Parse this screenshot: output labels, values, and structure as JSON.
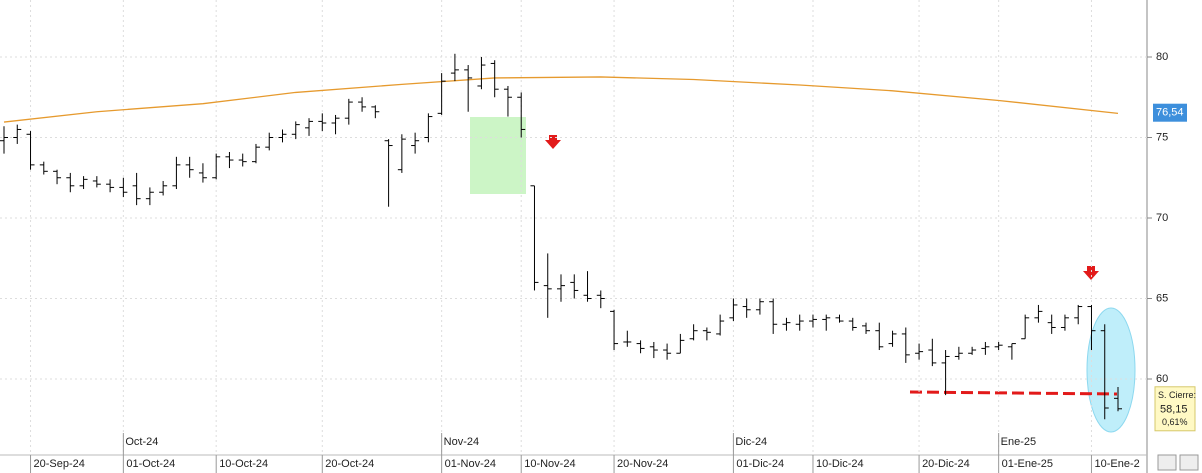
{
  "chart_data": {
    "type": "ohlc",
    "categories": [
      null,
      null,
      "20-Sep-24",
      null,
      null,
      null,
      null,
      null,
      null,
      "01-Oct-24",
      null,
      null,
      null,
      null,
      null,
      null,
      "10-Oct-24",
      null,
      null,
      null,
      null,
      null,
      null,
      null,
      "20-Oct-24",
      null,
      null,
      null,
      null,
      null,
      null,
      null,
      null,
      "01-Nov-24",
      null,
      null,
      null,
      null,
      null,
      "10-Nov-24",
      null,
      null,
      null,
      null,
      null,
      null,
      "20-Nov-24",
      null,
      null,
      null,
      null,
      null,
      null,
      null,
      null,
      "01-Dic-24",
      null,
      null,
      null,
      null,
      null,
      "10-Dic-24",
      null,
      null,
      null,
      null,
      null,
      null,
      null,
      "20-Dic-24",
      null,
      null,
      null,
      null,
      null,
      "01-Ene-25",
      null,
      null,
      null,
      null,
      null,
      null,
      "10-Ene-2",
      null,
      null
    ],
    "month_labels": [
      {
        "index": 9,
        "label": "Oct-24"
      },
      {
        "index": 33,
        "label": "Nov-24"
      },
      {
        "index": 55,
        "label": "Dic-24"
      },
      {
        "index": 75,
        "label": "Ene-25"
      }
    ],
    "open": [
      74.8,
      75.0,
      75.2,
      73.3,
      72.9,
      72.5,
      72.0,
      72.3,
      72.1,
      71.9,
      72.0,
      71.2,
      71.6,
      72.0,
      73.3,
      72.8,
      72.5,
      73.8,
      73.6,
      73.5,
      74.4,
      75.0,
      75.2,
      75.6,
      76.0,
      75.9,
      76.2,
      77.2,
      76.9,
      74.8,
      73.0,
      74.5,
      75.0,
      76.5,
      79.0,
      79.2,
      78.2,
      79.6,
      78.0,
      77.5,
      72.0,
      65.8,
      65.6,
      66.0,
      65.2,
      65.2,
      64.2,
      62.3,
      62.2,
      62.0,
      61.8,
      61.6,
      62.5,
      63.0,
      62.8,
      63.8,
      64.5,
      64.3,
      64.8,
      63.4,
      63.4,
      63.6,
      63.7,
      63.8,
      63.6,
      63.3,
      63.0,
      62.2,
      62.8,
      61.6,
      61.8,
      61.0,
      61.4,
      61.6,
      61.9,
      62.0,
      62.0,
      62.5,
      63.8,
      63.5,
      63.2,
      63.8,
      64.5,
      63.0,
      58.8
    ],
    "high": [
      75.7,
      75.8,
      75.4,
      73.5,
      73.0,
      72.8,
      72.6,
      72.6,
      72.4,
      72.5,
      72.8,
      71.9,
      72.3,
      73.8,
      73.8,
      73.4,
      74.0,
      74.1,
      74.0,
      74.6,
      75.3,
      75.5,
      76.0,
      76.2,
      76.5,
      76.4,
      77.4,
      77.5,
      77.0,
      74.9,
      75.2,
      75.3,
      76.5,
      79.0,
      80.2,
      79.5,
      80.0,
      79.8,
      78.2,
      77.8,
      72.0,
      67.8,
      66.5,
      66.5,
      66.7,
      65.5,
      64.3,
      63.0,
      62.4,
      62.3,
      62.2,
      62.8,
      63.4,
      63.2,
      64.0,
      65.0,
      65.0,
      65.0,
      65.0,
      63.8,
      64.0,
      64.0,
      64.0,
      64.0,
      63.8,
      63.5,
      63.5,
      63.0,
      63.2,
      62.2,
      62.5,
      61.8,
      62.0,
      62.0,
      62.3,
      62.3,
      62.2,
      64.0,
      64.6,
      64.0,
      64.0,
      64.6,
      64.6,
      63.4,
      59.5
    ],
    "low": [
      74.0,
      74.6,
      73.0,
      72.7,
      72.1,
      71.6,
      71.8,
      71.9,
      71.6,
      71.3,
      70.8,
      70.8,
      71.4,
      71.8,
      72.5,
      72.2,
      72.4,
      73.1,
      73.2,
      73.4,
      74.2,
      74.7,
      74.9,
      75.1,
      75.4,
      75.2,
      75.8,
      76.6,
      76.2,
      70.7,
      72.8,
      74.0,
      74.7,
      76.4,
      78.5,
      76.6,
      78.0,
      77.5,
      76.3,
      75.0,
      65.5,
      63.8,
      64.8,
      65.0,
      64.8,
      64.4,
      61.8,
      62.0,
      61.6,
      61.3,
      61.2,
      61.6,
      62.4,
      62.4,
      62.7,
      63.6,
      63.8,
      64.0,
      62.8,
      63.0,
      63.0,
      63.2,
      63.0,
      63.5,
      63.0,
      62.8,
      61.8,
      62.0,
      61.0,
      61.2,
      60.8,
      59.0,
      61.2,
      61.5,
      61.5,
      61.8,
      61.2,
      62.5,
      63.5,
      62.8,
      63.0,
      63.4,
      61.8,
      57.5,
      58.0
    ],
    "close": [
      75.0,
      75.5,
      73.3,
      72.9,
      72.5,
      72.0,
      72.4,
      72.1,
      71.9,
      71.6,
      71.2,
      71.6,
      72.0,
      73.3,
      73.0,
      72.5,
      73.8,
      73.6,
      73.5,
      74.4,
      75.0,
      75.2,
      75.8,
      76.0,
      75.9,
      76.2,
      77.2,
      76.9,
      76.6,
      74.5,
      74.9,
      74.8,
      76.3,
      78.5,
      79.2,
      78.7,
      79.5,
      78.0,
      77.5,
      75.5,
      66.0,
      65.6,
      65.8,
      65.5,
      65.0,
      65.0,
      62.2,
      62.3,
      61.9,
      61.8,
      61.6,
      62.4,
      63.0,
      62.9,
      63.6,
      64.6,
      64.3,
      64.8,
      63.4,
      63.5,
      63.6,
      63.7,
      63.8,
      63.6,
      63.2,
      63.0,
      62.0,
      62.8,
      61.5,
      61.7,
      61.0,
      61.4,
      61.6,
      61.8,
      62.0,
      62.1,
      62.2,
      63.8,
      64.2,
      63.2,
      63.8,
      64.5,
      63.0,
      58.2,
      58.15
    ],
    "ma": {
      "color": "#e69a2e",
      "x": [
        0,
        7,
        15,
        22,
        30,
        37,
        45,
        52,
        60,
        67,
        75,
        84
      ],
      "values": [
        75.96,
        76.6,
        77.1,
        77.8,
        78.3,
        78.7,
        78.76,
        78.6,
        78.26,
        77.9,
        77.3,
        76.5
      ]
    },
    "ma_last": {
      "value": 76.54,
      "label": "76,54"
    },
    "last_close": {
      "title": "S. Cierre:",
      "value": 58.15,
      "label": "58,15",
      "change": "0,61%"
    },
    "color": "#000000",
    "ylim": [
      55.28,
      83.54
    ],
    "yticks": [
      60,
      65,
      70,
      75,
      80
    ],
    "grid": true
  }
}
